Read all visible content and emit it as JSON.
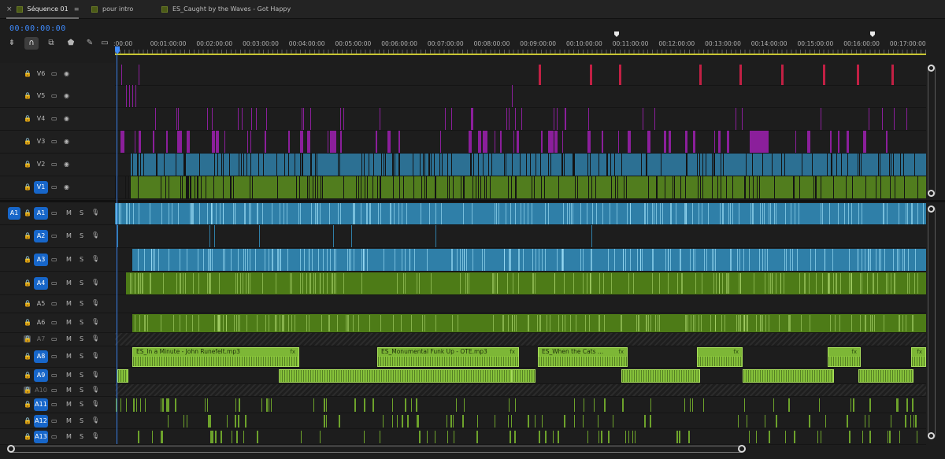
{
  "tabs": [
    {
      "label": "Séquence 01",
      "active": true,
      "close": "×",
      "menu": "≡"
    },
    {
      "label": "pour intro",
      "active": false
    },
    {
      "label": "ES_Caught by the Waves - Got Happy",
      "active": false
    }
  ],
  "timecode": "00:00:00:00",
  "tools": [
    "track-insert-icon",
    "snap-icon",
    "linked-selection-icon",
    "marker-icon",
    "wrench-icon",
    "captions-icon"
  ],
  "ruler": {
    "labels": [
      ":00:00",
      "00:01:00:00",
      "00:02:00:00",
      "00:03:00:00",
      "00:04:00:00",
      "00:05:00:00",
      "00:06:00:00",
      "00:07:00:00",
      "00:08:00:00",
      "00:09:00:00",
      "00:10:00:00",
      "00:11:00:00",
      "00:12:00:00",
      "00:13:00:00",
      "00:14:00:00",
      "00:15:00:00",
      "00:16:00:00",
      "00:17:00:00"
    ]
  },
  "video_tracks": [
    {
      "name": "V6",
      "source": "",
      "target": false
    },
    {
      "name": "V5",
      "source": "",
      "target": false
    },
    {
      "name": "V4",
      "source": "",
      "target": false
    },
    {
      "name": "V3",
      "source": "",
      "target": false
    },
    {
      "name": "V2",
      "source": "",
      "target": false
    },
    {
      "name": "V1",
      "source": "",
      "target": true
    }
  ],
  "audio_tracks": [
    {
      "name": "A1",
      "source": "A1",
      "target": true,
      "locked": false
    },
    {
      "name": "A2",
      "source": "",
      "target": true,
      "locked": false
    },
    {
      "name": "A3",
      "source": "",
      "target": true,
      "locked": false
    },
    {
      "name": "A4",
      "source": "",
      "target": true,
      "locked": false
    },
    {
      "name": "A5",
      "source": "",
      "target": false,
      "locked": false
    },
    {
      "name": "A6",
      "source": "",
      "target": false,
      "locked": false
    },
    {
      "name": "A7",
      "source": "",
      "target": false,
      "locked": true
    },
    {
      "name": "A8",
      "source": "",
      "target": true,
      "locked": false
    },
    {
      "name": "A9",
      "source": "",
      "target": true,
      "locked": false
    },
    {
      "name": "A10",
      "source": "",
      "target": false,
      "locked": true
    },
    {
      "name": "A11",
      "source": "",
      "target": true,
      "locked": false
    },
    {
      "name": "A12",
      "source": "",
      "target": true,
      "locked": false
    },
    {
      "name": "A13",
      "source": "",
      "target": true,
      "locked": false
    }
  ],
  "audio_button_labels": {
    "mute": "M",
    "solo": "S"
  },
  "music_clips": [
    {
      "label": "ES_In a Minute - John Runefelt.mp3",
      "fx": "fx"
    },
    {
      "label": "ES_Monumental Funk Up - OTE.mp3",
      "fx": "fx"
    },
    {
      "label": "ES_When the Cats ...",
      "fx": "fx"
    },
    {
      "label": "",
      "fx": "fx"
    },
    {
      "label": "",
      "fx": "fx"
    },
    {
      "label": "",
      "fx": "fx"
    }
  ],
  "colors": {
    "accent": "#1766c9",
    "timecode": "#3f8cff",
    "video_purple": "#8b1f9b",
    "video_blue": "#2f7fa8",
    "video_green": "#5b8e1e",
    "audio_green": "#86c23a",
    "marker_red": "#c22044"
  }
}
